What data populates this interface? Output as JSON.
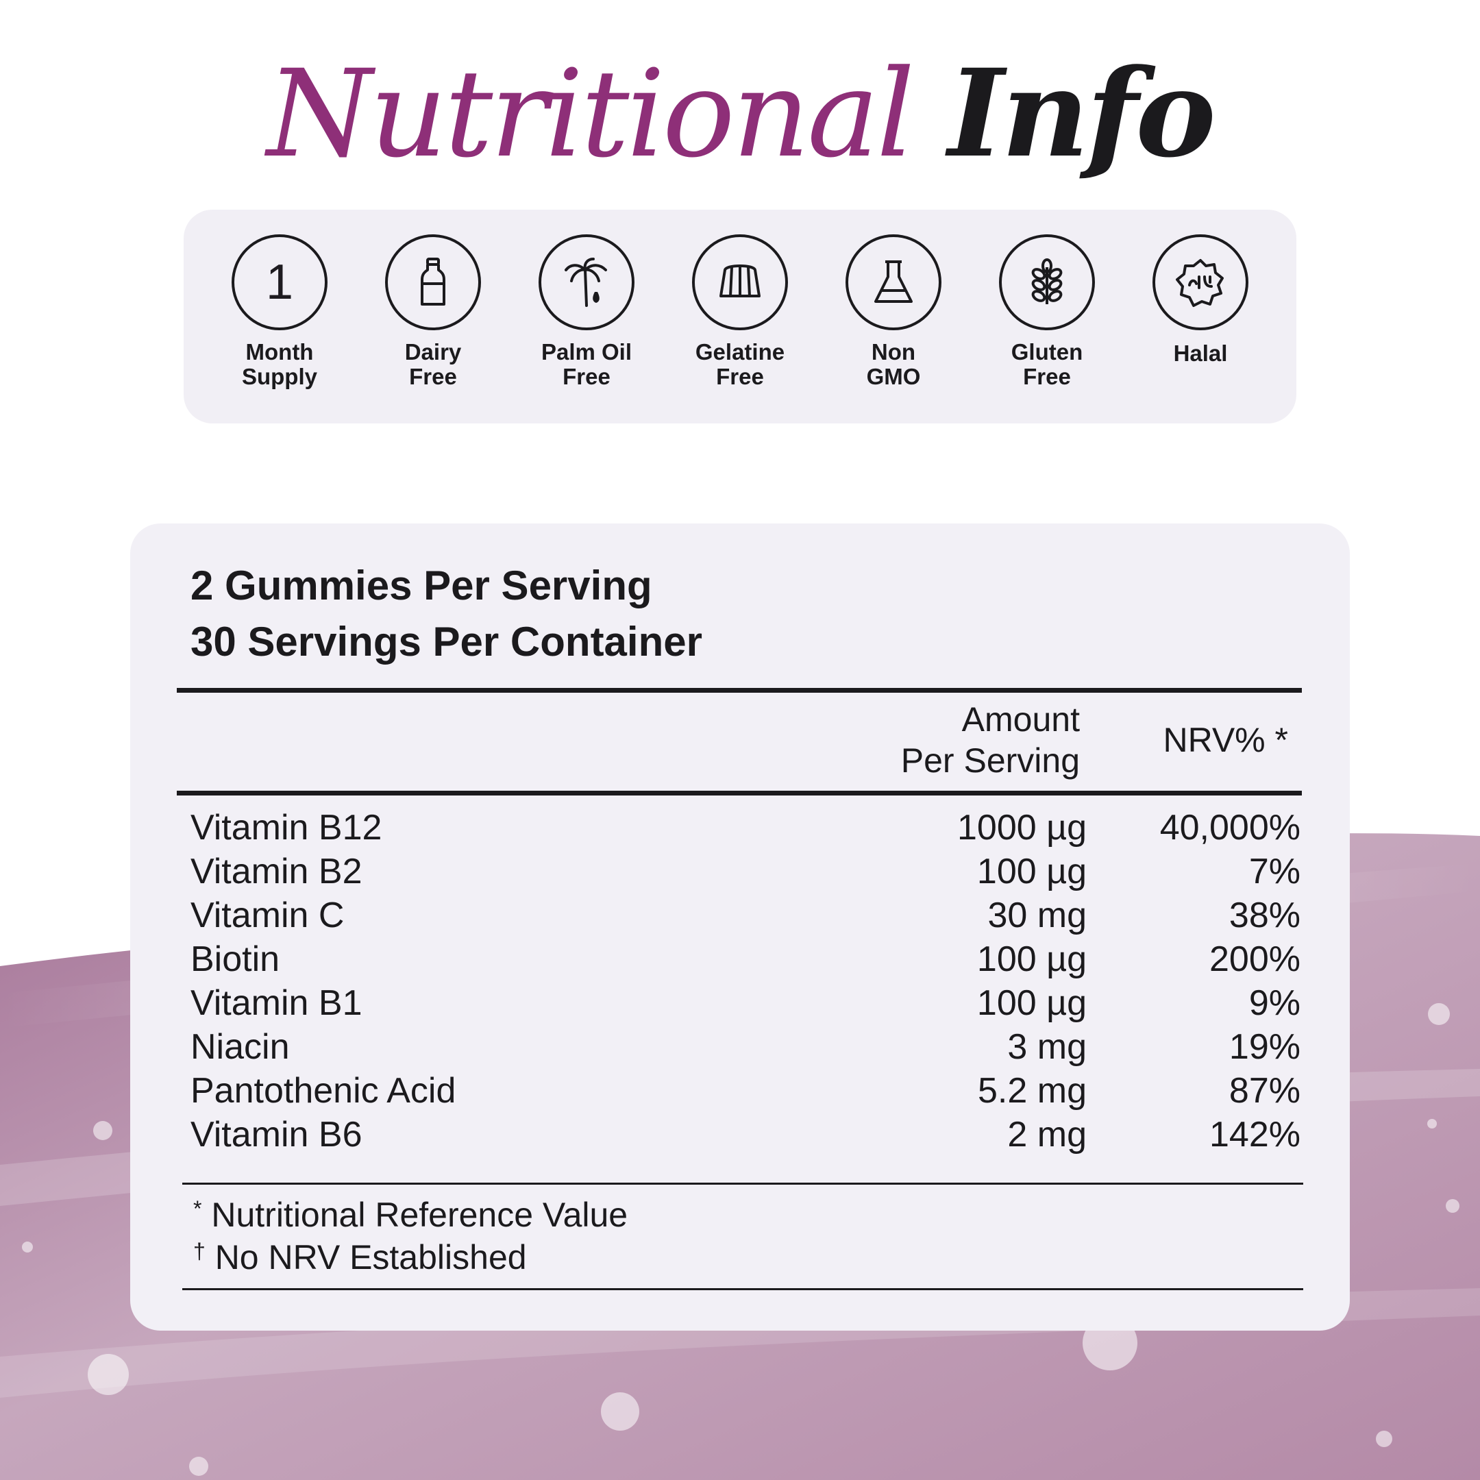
{
  "title": {
    "part1": "Nutritional",
    "part2": "Info"
  },
  "badges": [
    {
      "icon": "number-one-icon",
      "number": "1",
      "line1": "Month",
      "line2": "Supply"
    },
    {
      "icon": "milk-bottle-icon",
      "line1": "Dairy",
      "line2": "Free"
    },
    {
      "icon": "palm-tree-icon",
      "line1": "Palm Oil",
      "line2": "Free"
    },
    {
      "icon": "gelatine-icon",
      "line1": "Gelatine",
      "line2": "Free"
    },
    {
      "icon": "flask-icon",
      "line1": "Non",
      "line2": "GMO"
    },
    {
      "icon": "wheat-icon",
      "line1": "Gluten",
      "line2": "Free"
    },
    {
      "icon": "halal-icon",
      "line1": "Halal",
      "line2": ""
    }
  ],
  "serving": {
    "line1": "2 Gummies Per Serving",
    "line2": "30 Servings Per Container"
  },
  "table": {
    "amount_header_line1": "Amount",
    "amount_header_line2": "Per Serving",
    "nrv_header": "NRV% *",
    "rows": [
      {
        "name": "Vitamin B12",
        "amount": "1000 µg",
        "nrv": "40,000%"
      },
      {
        "name": "Vitamin B2",
        "amount": "100 µg",
        "nrv": "7%"
      },
      {
        "name": "Vitamin C",
        "amount": "30 mg",
        "nrv": "38%"
      },
      {
        "name": "Biotin",
        "amount": "100 µg",
        "nrv": "200%"
      },
      {
        "name": "Vitamin B1",
        "amount": "100 µg",
        "nrv": "9%"
      },
      {
        "name": "Niacin",
        "amount": "3 mg",
        "nrv": "19%"
      },
      {
        "name": "Pantothenic Acid",
        "amount": "5.2 mg",
        "nrv": "87%"
      },
      {
        "name": "Vitamin B6",
        "amount": "2 mg",
        "nrv": "142%"
      }
    ]
  },
  "footnotes": {
    "note1_mark": "*",
    "note1_text": "Nutritional Reference Value",
    "note2_mark": "†",
    "note2_text": "No NRV Established"
  },
  "colors": {
    "accent": "#8e2f78",
    "ink": "#1b1a1d",
    "panel": "#f2f0f6",
    "gel": "#b892ad"
  }
}
